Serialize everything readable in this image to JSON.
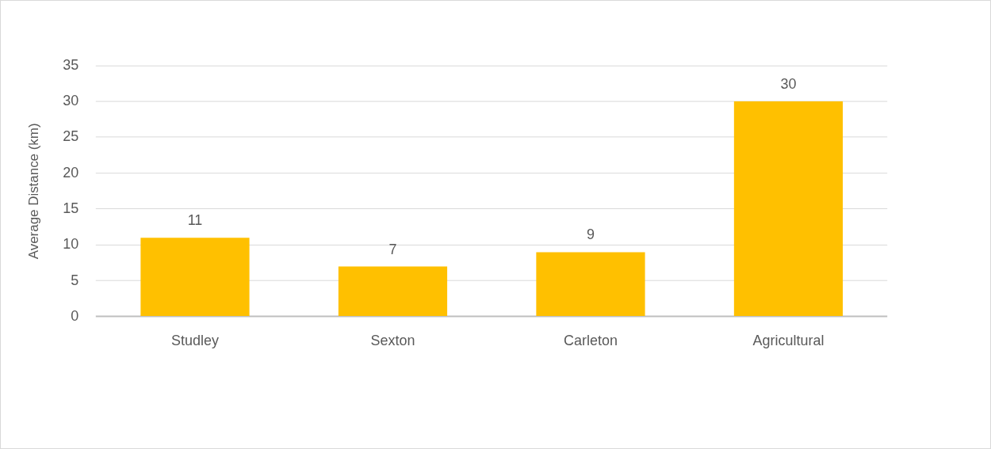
{
  "chart_data": {
    "type": "bar",
    "ylabel": "Average Distance (km)",
    "categories": [
      "Studley",
      "Sexton",
      "Carleton",
      "Agricultural"
    ],
    "values": [
      11,
      7,
      9,
      30
    ],
    "color": "#ffc000",
    "ylim": [
      0,
      35
    ],
    "yticks": [
      0,
      5,
      10,
      15,
      20,
      25,
      30,
      35
    ],
    "grid": "y",
    "data_labels": true,
    "legend": false
  }
}
